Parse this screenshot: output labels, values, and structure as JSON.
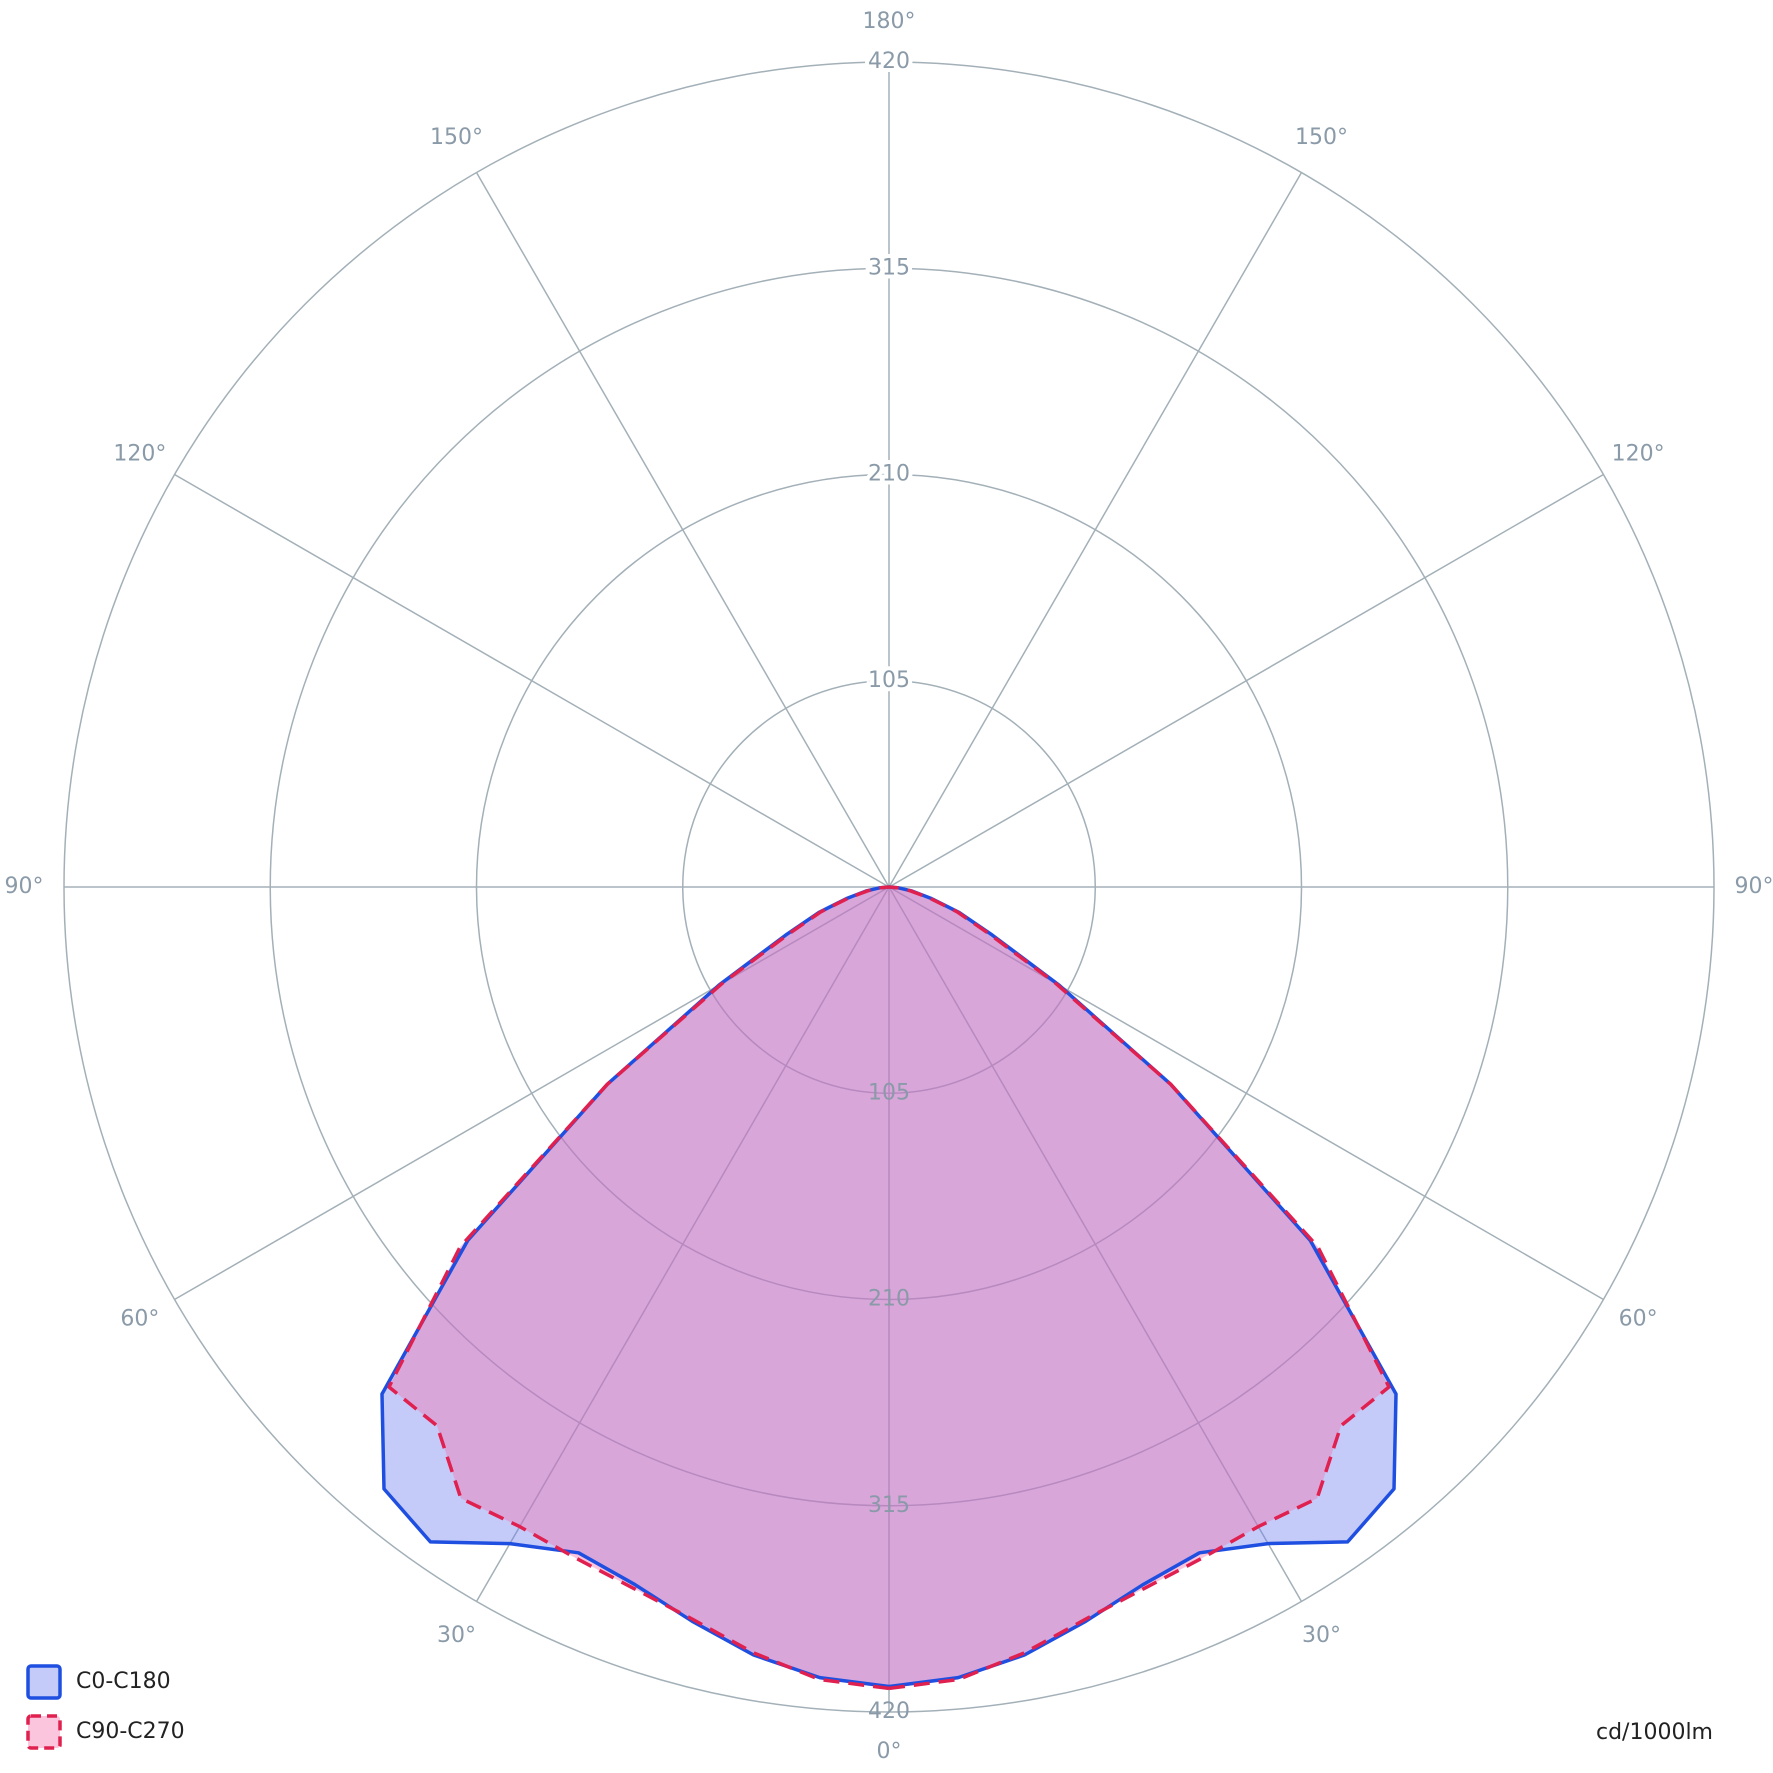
{
  "chart_data": {
    "type": "polar",
    "unit_label": "cd/1000lm",
    "rlim": [
      0,
      420
    ],
    "rticks": [
      105,
      210,
      315,
      420
    ],
    "angle_ticks": [
      {
        "value": 0,
        "label": "0°"
      },
      {
        "value": 30,
        "label": "30°"
      },
      {
        "value": 60,
        "label": "60°"
      },
      {
        "value": 90,
        "label": "90°"
      },
      {
        "value": 120,
        "label": "120°"
      },
      {
        "value": 150,
        "label": "150°"
      },
      {
        "value": 180,
        "label": "180°"
      }
    ],
    "grid": true,
    "mirrored": true,
    "legend": "bottom-left",
    "angles": [
      0,
      5,
      10,
      15,
      20,
      25,
      30,
      35,
      40,
      45,
      50,
      55,
      60,
      65,
      70,
      75,
      80,
      85,
      90
    ],
    "series": [
      {
        "name": "C0-C180",
        "color": "#1f4fe0",
        "fill": "rgba(110,125,240,0.4)",
        "line_style": "solid",
        "values": [
          407,
          404,
          397,
          387,
          378,
          374,
          386,
          407,
          400,
          365,
          280,
          175,
          100,
          58,
          38,
          22,
          12,
          5,
          0
        ]
      },
      {
        "name": "C90-C270",
        "color": "#e0204f",
        "fill": "rgba(245,110,170,0.4)",
        "line_style": "dashed",
        "values": [
          408,
          405,
          396,
          386,
          380,
          377,
          376,
          380,
          358,
          360,
          285,
          175,
          98,
          56,
          37,
          21,
          11,
          5,
          0
        ]
      }
    ]
  }
}
